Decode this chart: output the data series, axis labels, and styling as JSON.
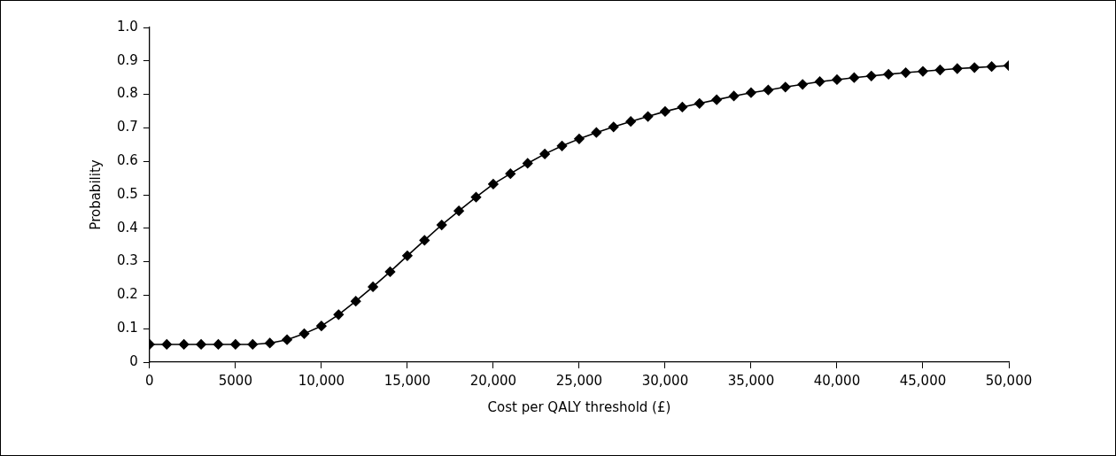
{
  "chart_data": {
    "type": "line",
    "xlabel": "Cost per QALY threshold (£)",
    "ylabel": "Probability",
    "x": [
      0,
      1000,
      2000,
      3000,
      4000,
      5000,
      6000,
      7000,
      8000,
      9000,
      10000,
      11000,
      12000,
      13000,
      14000,
      15000,
      16000,
      17000,
      18000,
      19000,
      20000,
      21000,
      22000,
      23000,
      24000,
      25000,
      26000,
      27000,
      28000,
      29000,
      30000,
      31000,
      32000,
      33000,
      34000,
      35000,
      36000,
      37000,
      38000,
      39000,
      40000,
      41000,
      42000,
      43000,
      44000,
      45000,
      46000,
      47000,
      48000,
      49000,
      50000
    ],
    "series": [
      {
        "color": "#000000",
        "values": [
          0.053,
          0.053,
          0.053,
          0.053,
          0.053,
          0.053,
          0.053,
          0.057,
          0.067,
          0.085,
          0.108,
          0.142,
          0.182,
          0.225,
          0.27,
          0.318,
          0.364,
          0.41,
          0.452,
          0.493,
          0.532,
          0.563,
          0.594,
          0.622,
          0.646,
          0.667,
          0.686,
          0.703,
          0.719,
          0.734,
          0.749,
          0.762,
          0.773,
          0.784,
          0.795,
          0.805,
          0.813,
          0.822,
          0.83,
          0.838,
          0.844,
          0.85,
          0.855,
          0.86,
          0.865,
          0.869,
          0.873,
          0.877,
          0.88,
          0.883,
          0.886
        ]
      }
    ],
    "xlim": [
      0,
      50000
    ],
    "xticks": [
      0,
      5000,
      {
        "value": 10000,
        "label": "10,000"
      },
      {
        "value": 15000,
        "label": "15,000"
      },
      {
        "value": 20000,
        "label": "20,000"
      },
      {
        "value": 25000,
        "label": "25,000"
      },
      {
        "value": 30000,
        "label": "30,000"
      },
      {
        "value": 35000,
        "label": "35,000"
      },
      {
        "value": 40000,
        "label": "40,000"
      },
      {
        "value": 45000,
        "label": "45,000"
      },
      {
        "value": 50000,
        "label": "50,000"
      }
    ],
    "ylim": [
      0,
      1
    ],
    "yticks": [
      0,
      0.1,
      0.2,
      0.3,
      0.4,
      0.5,
      0.6,
      0.7,
      0.8,
      0.9,
      {
        "value": 1,
        "label": "1.0"
      }
    ],
    "grid": false,
    "legend": false,
    "marker": "diamond",
    "line_style": "solid"
  }
}
